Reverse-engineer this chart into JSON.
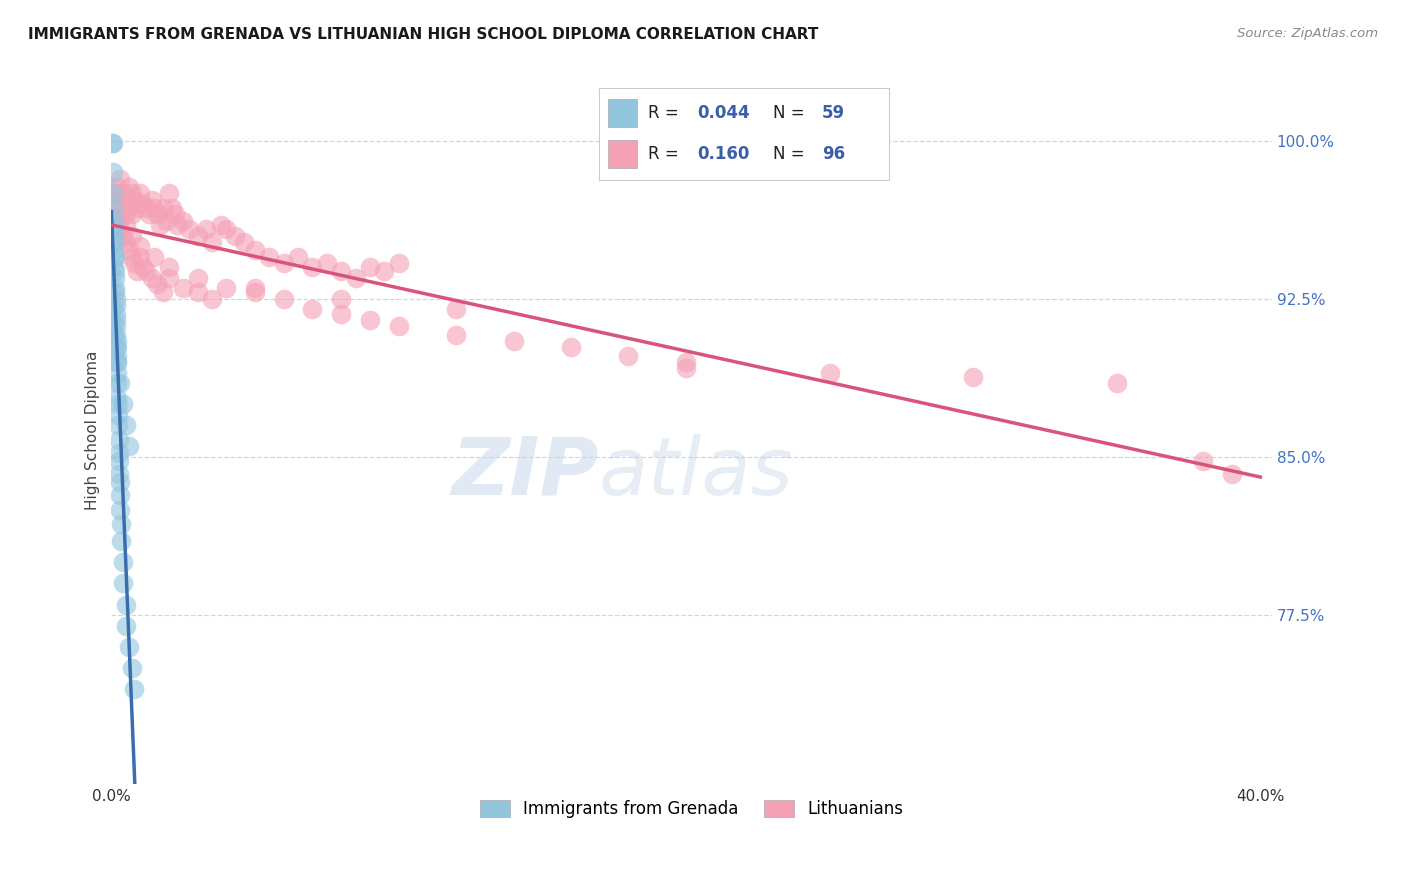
{
  "title": "IMMIGRANTS FROM GRENADA VS LITHUANIAN HIGH SCHOOL DIPLOMA CORRELATION CHART",
  "source": "Source: ZipAtlas.com",
  "ylabel": "High School Diploma",
  "ytick_labels": [
    "100.0%",
    "92.5%",
    "85.0%",
    "77.5%"
  ],
  "ytick_values": [
    1.0,
    0.925,
    0.85,
    0.775
  ],
  "legend_r1": "0.044",
  "legend_n1": "59",
  "legend_r2": "0.160",
  "legend_n2": "96",
  "legend_label1": "Immigrants from Grenada",
  "legend_label2": "Lithuanians",
  "blue_color": "#92c5de",
  "pink_color": "#f4a0b5",
  "blue_line_color": "#3a6dab",
  "pink_line_color": "#d9537a",
  "dashed_line_color": "#a8c8e8",
  "watermark_zip": "ZIP",
  "watermark_atlas": "atlas",
  "background_color": "#ffffff",
  "xmin": 0.0,
  "xmax": 0.4,
  "ymin": 0.695,
  "ymax": 1.03,
  "grenada_x": [
    0.0003,
    0.0005,
    0.0005,
    0.0007,
    0.0007,
    0.0008,
    0.0008,
    0.0009,
    0.001,
    0.001,
    0.001,
    0.001,
    0.001,
    0.0012,
    0.0012,
    0.0013,
    0.0013,
    0.0014,
    0.0015,
    0.0015,
    0.0015,
    0.0016,
    0.0017,
    0.0017,
    0.0018,
    0.0018,
    0.0019,
    0.002,
    0.002,
    0.002,
    0.002,
    0.0022,
    0.0023,
    0.0024,
    0.0025,
    0.0025,
    0.0026,
    0.0027,
    0.003,
    0.003,
    0.003,
    0.0032,
    0.0035,
    0.004,
    0.004,
    0.005,
    0.005,
    0.006,
    0.007,
    0.008,
    0.0005,
    0.0007,
    0.001,
    0.0015,
    0.002,
    0.003,
    0.004,
    0.005,
    0.006
  ],
  "grenada_y": [
    0.999,
    0.999,
    0.985,
    0.975,
    0.968,
    0.962,
    0.958,
    0.953,
    0.958,
    0.952,
    0.948,
    0.944,
    0.94,
    0.945,
    0.938,
    0.935,
    0.93,
    0.928,
    0.925,
    0.922,
    0.918,
    0.915,
    0.912,
    0.908,
    0.905,
    0.902,
    0.898,
    0.895,
    0.89,
    0.885,
    0.878,
    0.875,
    0.87,
    0.865,
    0.858,
    0.852,
    0.848,
    0.842,
    0.838,
    0.832,
    0.825,
    0.818,
    0.81,
    0.8,
    0.79,
    0.78,
    0.77,
    0.76,
    0.75,
    0.74,
    0.92,
    0.912,
    0.908,
    0.902,
    0.895,
    0.885,
    0.875,
    0.865,
    0.855
  ],
  "lithuanian_x": [
    0.001,
    0.001,
    0.002,
    0.002,
    0.003,
    0.003,
    0.004,
    0.004,
    0.005,
    0.005,
    0.006,
    0.006,
    0.007,
    0.007,
    0.008,
    0.009,
    0.01,
    0.011,
    0.012,
    0.013,
    0.014,
    0.015,
    0.016,
    0.017,
    0.018,
    0.019,
    0.02,
    0.021,
    0.022,
    0.023,
    0.025,
    0.027,
    0.03,
    0.033,
    0.035,
    0.038,
    0.04,
    0.043,
    0.046,
    0.05,
    0.055,
    0.06,
    0.065,
    0.07,
    0.075,
    0.08,
    0.085,
    0.09,
    0.095,
    0.1,
    0.002,
    0.003,
    0.004,
    0.005,
    0.006,
    0.007,
    0.008,
    0.009,
    0.01,
    0.011,
    0.012,
    0.014,
    0.016,
    0.018,
    0.02,
    0.025,
    0.03,
    0.035,
    0.04,
    0.05,
    0.06,
    0.07,
    0.08,
    0.09,
    0.1,
    0.12,
    0.14,
    0.16,
    0.18,
    0.2,
    0.003,
    0.005,
    0.007,
    0.01,
    0.015,
    0.02,
    0.03,
    0.05,
    0.08,
    0.12,
    0.2,
    0.25,
    0.3,
    0.35,
    0.38,
    0.39
  ],
  "lithuanian_y": [
    0.975,
    0.968,
    0.978,
    0.97,
    0.982,
    0.972,
    0.968,
    0.975,
    0.972,
    0.965,
    0.978,
    0.968,
    0.965,
    0.975,
    0.972,
    0.968,
    0.975,
    0.97,
    0.968,
    0.965,
    0.972,
    0.968,
    0.965,
    0.96,
    0.968,
    0.962,
    0.975,
    0.968,
    0.965,
    0.96,
    0.962,
    0.958,
    0.955,
    0.958,
    0.952,
    0.96,
    0.958,
    0.955,
    0.952,
    0.948,
    0.945,
    0.942,
    0.945,
    0.94,
    0.942,
    0.938,
    0.935,
    0.94,
    0.938,
    0.942,
    0.96,
    0.958,
    0.955,
    0.952,
    0.948,
    0.945,
    0.942,
    0.938,
    0.945,
    0.94,
    0.938,
    0.935,
    0.932,
    0.928,
    0.935,
    0.93,
    0.928,
    0.925,
    0.93,
    0.928,
    0.925,
    0.92,
    0.918,
    0.915,
    0.912,
    0.908,
    0.905,
    0.902,
    0.898,
    0.895,
    0.965,
    0.96,
    0.955,
    0.95,
    0.945,
    0.94,
    0.935,
    0.93,
    0.925,
    0.92,
    0.892,
    0.89,
    0.888,
    0.885,
    0.848,
    0.842
  ]
}
